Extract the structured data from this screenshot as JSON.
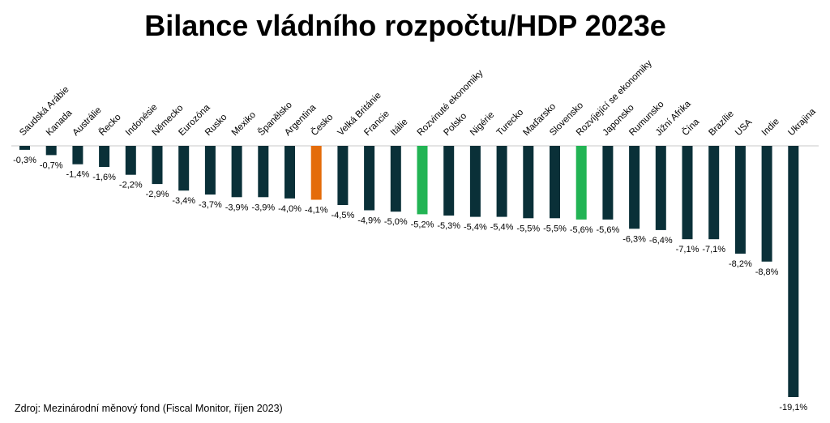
{
  "chart_data": {
    "type": "bar",
    "title": "Bilance vládního rozpočtu/HDP 2023e",
    "source": "Zdroj: Mezinárodní měnový fond (Fiscal Monitor, říjen 2023)",
    "xlabel": "",
    "ylabel": "",
    "ylim": [
      -19.1,
      0
    ],
    "grid": false,
    "categories": [
      "Saudská Arábie",
      "Kanada",
      "Austrálie",
      "Řecko",
      "Indonésie",
      "Německo",
      "Eurozóna",
      "Rusko",
      "Mexiko",
      "Španělsko",
      "Argentina",
      "Česko",
      "Velká Británie",
      "Francie",
      "Itálie",
      "Rozvinuté ekonomiky",
      "Polsko",
      "Nigérie",
      "Turecko",
      "Maďarsko",
      "Slovensko",
      "Rozvíjející se ekonomiky",
      "Japonsko",
      "Rumunsko",
      "Jižní Afrika",
      "Čína",
      "Brazílie",
      "USA",
      "Indie",
      "Ukrajina"
    ],
    "values": [
      -0.3,
      -0.7,
      -1.4,
      -1.6,
      -2.2,
      -2.9,
      -3.4,
      -3.7,
      -3.9,
      -3.9,
      -4.0,
      -4.1,
      -4.5,
      -4.9,
      -5.0,
      -5.2,
      -5.3,
      -5.4,
      -5.4,
      -5.5,
      -5.5,
      -5.6,
      -5.6,
      -6.3,
      -6.4,
      -7.1,
      -7.1,
      -8.2,
      -8.8,
      -19.1
    ],
    "value_labels": [
      "-0,3%",
      "-0,7%",
      "-1,4%",
      "-1,6%",
      "-2,2%",
      "-2,9%",
      "-3,4%",
      "-3,7%",
      "-3,9%",
      "-3,9%",
      "-4,0%",
      "-4,1%",
      "-4,5%",
      "-4,9%",
      "-5,0%",
      "-5,2%",
      "-5,3%",
      "-5,4%",
      "-5,4%",
      "-5,5%",
      "-5,5%",
      "-5,6%",
      "-5,6%",
      "-6,3%",
      "-6,4%",
      "-7,1%",
      "-7,1%",
      "-8,2%",
      "-8,8%",
      "-19,1%"
    ],
    "colors": {
      "default": "#0a3038",
      "highlight": "#e46c0a",
      "aggregate": "#22b454",
      "baseline": "#c8c8c8",
      "text": "#000000"
    },
    "highlight_categories": [
      "Česko"
    ],
    "aggregate_categories": [
      "Rozvinuté ekonomiky",
      "Rozvíjející se ekonomiky"
    ]
  }
}
